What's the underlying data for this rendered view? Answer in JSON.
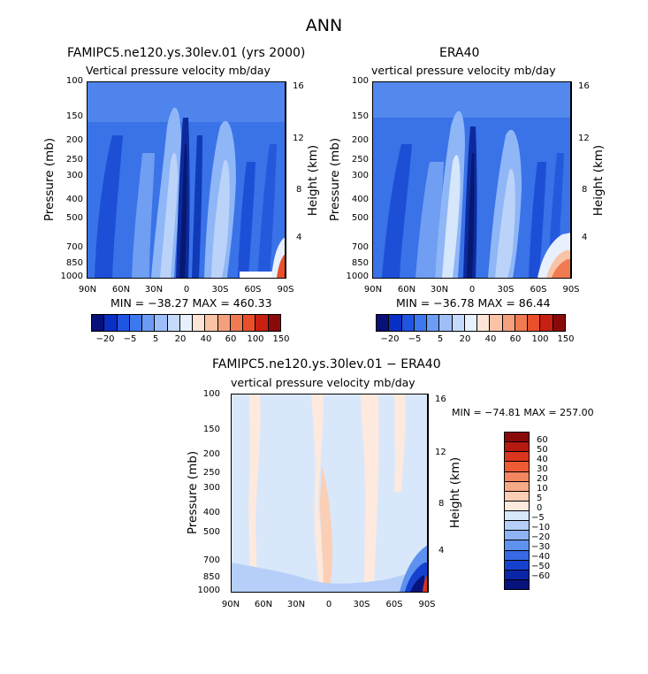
{
  "page_title": "ANN",
  "chart_data": [
    {
      "type": "heatmap",
      "title": "FAMIPC5.ne120.ys.30lev.01 (yrs 2000)",
      "subtitle": "Vertical pressure velocity   mb/day",
      "ylabel": "Pressure (mb)",
      "y2label": "Height (km)",
      "yticks": [
        "100",
        "150",
        "200",
        "250",
        "300",
        "400",
        "500",
        "700",
        "850",
        "1000"
      ],
      "y2ticks": [
        "16",
        "12",
        "8",
        "4"
      ],
      "xticks": [
        "90N",
        "60N",
        "30N",
        "0",
        "30S",
        "60S",
        "90S"
      ],
      "stats": "MIN = −38.27   MAX = 460.33",
      "colorbar_labels": [
        "−20",
        "−5",
        "5",
        "20",
        "40",
        "60",
        "100",
        "150"
      ]
    },
    {
      "type": "heatmap",
      "title": "ERA40",
      "subtitle": "vertical pressure velocity   mb/day",
      "ylabel": "Pressure (mb)",
      "y2label": "Height (km)",
      "yticks": [
        "100",
        "150",
        "200",
        "250",
        "300",
        "400",
        "500",
        "700",
        "850",
        "1000"
      ],
      "y2ticks": [
        "16",
        "12",
        "8",
        "4"
      ],
      "xticks": [
        "90N",
        "60N",
        "30N",
        "0",
        "30S",
        "60S",
        "90S"
      ],
      "stats": "MIN = −36.78   MAX =   86.44",
      "colorbar_labels": [
        "−20",
        "−5",
        "5",
        "20",
        "40",
        "60",
        "100",
        "150"
      ]
    },
    {
      "type": "heatmap",
      "title": "FAMIPC5.ne120.ys.30lev.01 − ERA40",
      "subtitle": "vertical pressure velocity   mb/day",
      "ylabel": "Pressure (mb)",
      "y2label": "Height (km)",
      "yticks": [
        "100",
        "150",
        "200",
        "250",
        "300",
        "400",
        "500",
        "700",
        "850",
        "1000"
      ],
      "y2ticks": [
        "16",
        "12",
        "8",
        "4"
      ],
      "xticks": [
        "90N",
        "60N",
        "30N",
        "0",
        "30S",
        "60S",
        "90S"
      ],
      "stats": "MIN = −74.81   MAX = 257.00",
      "colorbar_labels": [
        "60",
        "50",
        "40",
        "30",
        "20",
        "10",
        "5",
        "0",
        "−5",
        "−10",
        "−20",
        "−30",
        "−40",
        "−50",
        "−60"
      ]
    }
  ],
  "colors": {
    "horiz_colorbar": [
      "#08107a",
      "#0a2fc4",
      "#1f55e0",
      "#3e78ee",
      "#6c9cf4",
      "#9dbef8",
      "#c6dafb",
      "#e8f0fd",
      "#fde4d6",
      "#f9c3a6",
      "#f5a07d",
      "#f07a52",
      "#e8502c",
      "#c82012",
      "#8a0a0a"
    ],
    "vert_colorbar": [
      "#8a0a0a",
      "#b41a10",
      "#d9361d",
      "#ee5a33",
      "#f38560",
      "#f7aa87",
      "#fbcfb5",
      "#fde9de",
      "#d9e7fb",
      "#b5cff8",
      "#8db3f4",
      "#5f91ee",
      "#3669e3",
      "#1541cf",
      "#0a25a8",
      "#07137c"
    ]
  }
}
